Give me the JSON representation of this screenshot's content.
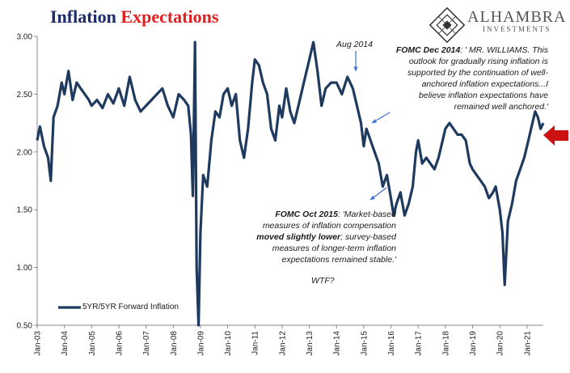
{
  "title_part1": "Inflation",
  "title_part2": "Expectations",
  "logo": {
    "name": "ALHAMBRA",
    "sub": "INVESTMENTS"
  },
  "annotations": {
    "aug2014": "Aug 2014",
    "dec2014_label": "FOMC Dec 2014",
    "dec2014_lines": [
      ": ' MR. WILLIAMS. This",
      "outlook for gradually rising inflation is",
      "supported by the continuation of well-",
      "anchored inflation expectations...I",
      "believe inflation expectations have",
      "remained well anchored.'"
    ],
    "oct2015_label": "FOMC Oct 2015",
    "oct2015_line1": ": 'Market-based",
    "oct2015_line2": "measures of inflation compensation",
    "oct2015_bold": "moved slightly lower",
    "oct2015_line3_rest": "; survey-based",
    "oct2015_line4": "measures of longer-term inflation",
    "oct2015_line5": "expectations remained stable.'",
    "wtf": "WTF?"
  },
  "colors": {
    "series": "#1f3a5f",
    "title_blue": "#1b2a6b",
    "title_red": "#e02020",
    "arrow_red": "#cc1111",
    "annotation_arrow": "#3a6fd8"
  },
  "chart_data": {
    "type": "line",
    "title": "Inflation Expectations",
    "x_ticks": [
      "Jan-03",
      "Jan-04",
      "Jan-05",
      "Jan-06",
      "Jan-07",
      "Jan-08",
      "Jan-09",
      "Jan-10",
      "Jan-11",
      "Jan-12",
      "Jan-13",
      "Jan-14",
      "Jan-15",
      "Jan-16",
      "Jan-17",
      "Jan-18",
      "Jan-19",
      "Jan-20",
      "Jan-21"
    ],
    "y_ticks": [
      "0.50",
      "1.00",
      "1.50",
      "2.00",
      "2.50",
      "3.00"
    ],
    "ylim": [
      0.5,
      3.0
    ],
    "xlim": [
      2003.0,
      2021.6
    ],
    "grid": false,
    "legend": "bottom-left",
    "series": [
      {
        "name": "5YR/5YR Forward Inflation",
        "points": [
          [
            2003.0,
            2.1
          ],
          [
            2003.1,
            2.22
          ],
          [
            2003.25,
            2.05
          ],
          [
            2003.4,
            1.95
          ],
          [
            2003.5,
            1.75
          ],
          [
            2003.6,
            2.3
          ],
          [
            2003.75,
            2.4
          ],
          [
            2003.9,
            2.6
          ],
          [
            2004.0,
            2.5
          ],
          [
            2004.15,
            2.7
          ],
          [
            2004.3,
            2.45
          ],
          [
            2004.45,
            2.6
          ],
          [
            2004.6,
            2.55
          ],
          [
            2004.75,
            2.5
          ],
          [
            2004.9,
            2.45
          ],
          [
            2005.0,
            2.4
          ],
          [
            2005.2,
            2.45
          ],
          [
            2005.4,
            2.38
          ],
          [
            2005.6,
            2.5
          ],
          [
            2005.8,
            2.42
          ],
          [
            2006.0,
            2.55
          ],
          [
            2006.2,
            2.4
          ],
          [
            2006.4,
            2.65
          ],
          [
            2006.6,
            2.45
          ],
          [
            2006.8,
            2.35
          ],
          [
            2007.0,
            2.4
          ],
          [
            2007.2,
            2.45
          ],
          [
            2007.4,
            2.5
          ],
          [
            2007.6,
            2.55
          ],
          [
            2007.8,
            2.4
          ],
          [
            2008.0,
            2.3
          ],
          [
            2008.2,
            2.5
          ],
          [
            2008.4,
            2.45
          ],
          [
            2008.55,
            2.4
          ],
          [
            2008.65,
            2.15
          ],
          [
            2008.72,
            1.62
          ],
          [
            2008.8,
            2.95
          ],
          [
            2008.86,
            1.0
          ],
          [
            2008.93,
            0.5
          ],
          [
            2009.0,
            1.3
          ],
          [
            2009.1,
            1.8
          ],
          [
            2009.25,
            1.7
          ],
          [
            2009.4,
            2.1
          ],
          [
            2009.55,
            2.35
          ],
          [
            2009.7,
            2.3
          ],
          [
            2009.85,
            2.5
          ],
          [
            2010.0,
            2.55
          ],
          [
            2010.15,
            2.4
          ],
          [
            2010.3,
            2.5
          ],
          [
            2010.45,
            2.1
          ],
          [
            2010.6,
            1.95
          ],
          [
            2010.75,
            2.2
          ],
          [
            2010.9,
            2.6
          ],
          [
            2011.0,
            2.8
          ],
          [
            2011.15,
            2.75
          ],
          [
            2011.3,
            2.6
          ],
          [
            2011.45,
            2.5
          ],
          [
            2011.6,
            2.2
          ],
          [
            2011.75,
            2.1
          ],
          [
            2011.9,
            2.4
          ],
          [
            2012.0,
            2.3
          ],
          [
            2012.15,
            2.55
          ],
          [
            2012.3,
            2.35
          ],
          [
            2012.45,
            2.25
          ],
          [
            2012.6,
            2.4
          ],
          [
            2012.8,
            2.6
          ],
          [
            2013.0,
            2.8
          ],
          [
            2013.15,
            2.95
          ],
          [
            2013.3,
            2.7
          ],
          [
            2013.45,
            2.4
          ],
          [
            2013.6,
            2.55
          ],
          [
            2013.8,
            2.6
          ],
          [
            2014.0,
            2.6
          ],
          [
            2014.2,
            2.5
          ],
          [
            2014.4,
            2.65
          ],
          [
            2014.6,
            2.55
          ],
          [
            2014.75,
            2.4
          ],
          [
            2014.9,
            2.25
          ],
          [
            2015.0,
            2.05
          ],
          [
            2015.1,
            2.2
          ],
          [
            2015.25,
            2.1
          ],
          [
            2015.4,
            2.0
          ],
          [
            2015.55,
            1.9
          ],
          [
            2015.7,
            1.7
          ],
          [
            2015.85,
            1.8
          ],
          [
            2016.0,
            1.6
          ],
          [
            2016.1,
            1.45
          ],
          [
            2016.2,
            1.55
          ],
          [
            2016.35,
            1.65
          ],
          [
            2016.5,
            1.45
          ],
          [
            2016.65,
            1.55
          ],
          [
            2016.8,
            1.7
          ],
          [
            2016.92,
            2.0
          ],
          [
            2017.0,
            2.1
          ],
          [
            2017.15,
            1.9
          ],
          [
            2017.3,
            1.95
          ],
          [
            2017.45,
            1.9
          ],
          [
            2017.6,
            1.85
          ],
          [
            2017.75,
            1.95
          ],
          [
            2017.9,
            2.1
          ],
          [
            2018.0,
            2.2
          ],
          [
            2018.15,
            2.25
          ],
          [
            2018.3,
            2.2
          ],
          [
            2018.45,
            2.15
          ],
          [
            2018.6,
            2.15
          ],
          [
            2018.75,
            2.1
          ],
          [
            2018.9,
            1.9
          ],
          [
            2019.0,
            1.85
          ],
          [
            2019.15,
            1.8
          ],
          [
            2019.3,
            1.75
          ],
          [
            2019.45,
            1.7
          ],
          [
            2019.6,
            1.6
          ],
          [
            2019.75,
            1.65
          ],
          [
            2019.85,
            1.7
          ],
          [
            2020.0,
            1.5
          ],
          [
            2020.1,
            1.3
          ],
          [
            2020.18,
            0.85
          ],
          [
            2020.3,
            1.4
          ],
          [
            2020.45,
            1.55
          ],
          [
            2020.6,
            1.75
          ],
          [
            2020.75,
            1.85
          ],
          [
            2020.9,
            1.95
          ],
          [
            2021.0,
            2.05
          ],
          [
            2021.1,
            2.15
          ],
          [
            2021.2,
            2.25
          ],
          [
            2021.3,
            2.35
          ],
          [
            2021.4,
            2.3
          ],
          [
            2021.5,
            2.2
          ],
          [
            2021.6,
            2.25
          ]
        ]
      }
    ]
  }
}
